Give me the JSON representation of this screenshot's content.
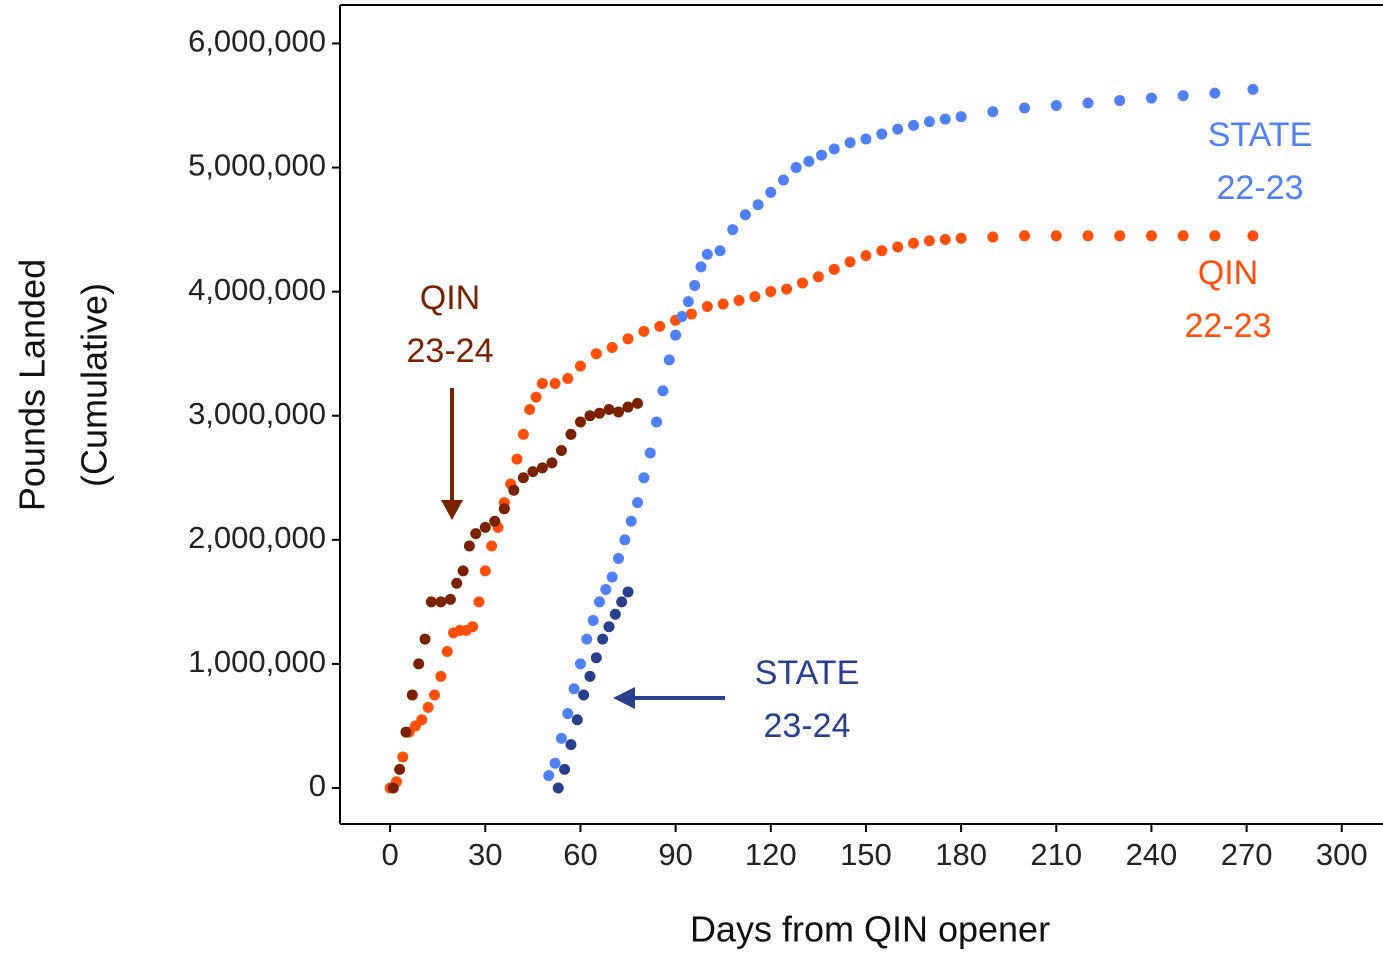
{
  "chart_data": {
    "type": "scatter",
    "xlabel": "Days from QIN opener",
    "ylabel": [
      "Pounds Landed",
      "(Cumulative)"
    ],
    "xlim": [
      -15.8,
      313
    ],
    "ylim": [
      -290000,
      6310000
    ],
    "xticks": [
      0,
      30,
      60,
      90,
      120,
      150,
      180,
      210,
      240,
      270,
      300
    ],
    "yticks": [
      0,
      {
        "value": 1000000,
        "label": "1,000,000"
      },
      {
        "value": 2000000,
        "label": "2,000,000"
      },
      {
        "value": 3000000,
        "label": "3,000,000"
      },
      {
        "value": 4000000,
        "label": "4,000,000"
      },
      {
        "value": 5000000,
        "label": "5,000,000"
      },
      {
        "value": 6000000,
        "label": "6,000,000"
      }
    ],
    "series": [
      {
        "color": "#ff4f0a",
        "x": [
          0,
          2,
          4,
          6,
          8,
          10,
          12,
          14,
          16,
          18,
          20,
          22,
          24,
          26,
          28,
          30,
          32,
          34,
          36,
          38,
          40,
          42,
          44,
          46,
          48,
          52,
          56,
          60,
          65,
          70,
          75,
          80,
          85,
          90,
          95,
          100,
          105,
          110,
          115,
          120,
          125,
          130,
          135,
          140,
          145,
          150,
          155,
          160,
          165,
          170,
          175,
          180,
          190,
          200,
          210,
          220,
          230,
          240,
          250,
          260,
          272
        ],
        "values": [
          0,
          50000,
          250000,
          450000,
          500000,
          550000,
          650000,
          750000,
          900000,
          1100000,
          1250000,
          1270000,
          1270000,
          1300000,
          1500000,
          1750000,
          1950000,
          2100000,
          2300000,
          2450000,
          2650000,
          2850000,
          3050000,
          3150000,
          3260000,
          3260000,
          3300000,
          3400000,
          3500000,
          3550000,
          3620000,
          3680000,
          3720000,
          3770000,
          3820000,
          3880000,
          3900000,
          3930000,
          3960000,
          4000000,
          4020000,
          4070000,
          4120000,
          4180000,
          4240000,
          4290000,
          4330000,
          4360000,
          4390000,
          4410000,
          4420000,
          4430000,
          4440000,
          4450000,
          4450000,
          4450000,
          4450000,
          4450000,
          4450000,
          4450000,
          4450000
        ]
      },
      {
        "color": "#5080f5",
        "x": [
          50,
          52,
          54,
          56,
          58,
          60,
          62,
          64,
          66,
          68,
          70,
          72,
          74,
          76,
          78,
          80,
          82,
          84,
          86,
          88,
          90,
          92,
          94,
          96,
          98,
          100,
          104,
          108,
          112,
          116,
          120,
          124,
          128,
          132,
          136,
          140,
          145,
          150,
          155,
          160,
          165,
          170,
          175,
          180,
          190,
          200,
          210,
          220,
          230,
          240,
          250,
          260,
          272
        ],
        "values": [
          100000,
          200000,
          400000,
          600000,
          800000,
          1000000,
          1200000,
          1350000,
          1500000,
          1600000,
          1700000,
          1850000,
          2000000,
          2150000,
          2300000,
          2500000,
          2700000,
          2950000,
          3200000,
          3450000,
          3650000,
          3800000,
          3920000,
          4050000,
          4200000,
          4300000,
          4330000,
          4500000,
          4620000,
          4700000,
          4800000,
          4900000,
          5000000,
          5050000,
          5100000,
          5150000,
          5200000,
          5230000,
          5270000,
          5310000,
          5340000,
          5370000,
          5390000,
          5410000,
          5450000,
          5480000,
          5500000,
          5520000,
          5540000,
          5560000,
          5580000,
          5600000,
          5630000
        ]
      },
      {
        "color": "#7a2200",
        "x": [
          1,
          3,
          5,
          7,
          9,
          11,
          13,
          16,
          19,
          21,
          23,
          25,
          27,
          30,
          33,
          36,
          39,
          42,
          45,
          48,
          51,
          54,
          57,
          60,
          63,
          66,
          69,
          72,
          75,
          78
        ],
        "values": [
          0,
          150000,
          450000,
          750000,
          1000000,
          1200000,
          1500000,
          1500000,
          1520000,
          1650000,
          1750000,
          1950000,
          2050000,
          2100000,
          2150000,
          2250000,
          2400000,
          2500000,
          2550000,
          2580000,
          2620000,
          2720000,
          2850000,
          2950000,
          3000000,
          3020000,
          3050000,
          3030000,
          3070000,
          3100000
        ]
      },
      {
        "color": "#283f8c",
        "x": [
          53,
          55,
          57,
          59,
          61,
          63,
          65,
          67,
          69,
          71,
          73,
          75
        ],
        "values": [
          0,
          150000,
          350000,
          550000,
          750000,
          900000,
          1050000,
          1200000,
          1300000,
          1400000,
          1500000,
          1580000
        ]
      }
    ],
    "annotations": [
      {
        "lines": [
          "STATE",
          "22-23"
        ],
        "color": "#5080f5"
      },
      {
        "lines": [
          "QIN",
          "22-23"
        ],
        "color": "#ff4f0a"
      },
      {
        "lines": [
          "QIN",
          "23-24"
        ],
        "color": "#7a2200"
      },
      {
        "lines": [
          "STATE",
          "23-24"
        ],
        "color": "#283f8c"
      }
    ]
  }
}
